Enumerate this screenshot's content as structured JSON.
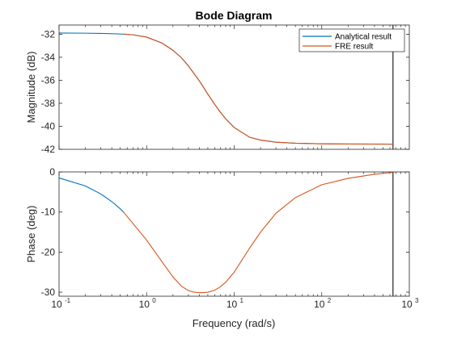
{
  "chart_data": {
    "type": "line",
    "title": "Bode Diagram",
    "xlabel": "Frequency (rad/s)",
    "xscale": "log",
    "xlim": [
      0.1,
      1000
    ],
    "xticks": [
      {
        "base": "10",
        "exp": "-1"
      },
      {
        "base": "10",
        "exp": "0"
      },
      {
        "base": "10",
        "exp": "1"
      },
      {
        "base": "10",
        "exp": "2"
      },
      {
        "base": "10",
        "exp": "3"
      }
    ],
    "vertical_marker_x": 650,
    "legend": {
      "placement": "top-right"
    },
    "panels": [
      {
        "name": "magnitude",
        "ylabel": "Magnitude (dB)",
        "ylim": [
          -42,
          -31.2
        ],
        "yticks": [
          -42,
          -40,
          -38,
          -36,
          -34,
          -32
        ],
        "series": [
          {
            "name": "Analytical result",
            "color": "#0072BD",
            "x": [
              0.1,
              0.2,
              0.3,
              0.5,
              0.7,
              1,
              1.5,
              2,
              2.5,
              3,
              4,
              5,
              6,
              7,
              8,
              10,
              15,
              20,
              30,
              50,
              100,
              200,
              650
            ],
            "y": [
              -31.9,
              -31.91,
              -31.93,
              -31.98,
              -32.05,
              -32.25,
              -32.77,
              -33.4,
              -34.05,
              -34.75,
              -36.05,
              -37.2,
              -38.1,
              -38.8,
              -39.35,
              -40.1,
              -40.95,
              -41.2,
              -41.38,
              -41.47,
              -41.52,
              -41.54,
              -41.55
            ]
          },
          {
            "name": "FRE result",
            "color": "#D95319",
            "x": [
              0.55,
              0.7,
              1,
              1.5,
              2,
              2.5,
              3,
              4,
              5,
              6,
              7,
              8,
              10,
              15,
              20,
              30,
              50,
              100,
              200,
              650
            ],
            "y": [
              -31.98,
              -32.05,
              -32.25,
              -32.77,
              -33.4,
              -34.05,
              -34.75,
              -36.05,
              -37.2,
              -38.1,
              -38.8,
              -39.35,
              -40.1,
              -40.95,
              -41.2,
              -41.38,
              -41.47,
              -41.52,
              -41.54,
              -41.55
            ]
          }
        ]
      },
      {
        "name": "phase",
        "ylabel": "Phase (deg)",
        "ylim": [
          -31,
          0
        ],
        "yticks": [
          -30,
          -20,
          -10,
          0
        ],
        "series": [
          {
            "name": "Analytical result",
            "color": "#0072BD",
            "x": [
              0.1,
              0.2,
              0.3,
              0.4,
              0.5,
              0.55
            ],
            "y": [
              -1.5,
              -3.5,
              -5.5,
              -7.4,
              -9.2,
              -10.1
            ]
          },
          {
            "name": "FRE result",
            "color": "#D95319",
            "x": [
              0.55,
              0.7,
              1,
              1.5,
              2,
              2.5,
              3,
              3.5,
              4,
              4.5,
              5,
              6,
              7,
              8,
              10,
              15,
              20,
              30,
              50,
              100,
              200,
              400,
              650
            ],
            "y": [
              -10.1,
              -12.9,
              -17,
              -22.4,
              -26.2,
              -28.5,
              -29.6,
              -30.0,
              -30.1,
              -30.1,
              -30.0,
              -29.5,
              -28.6,
              -27.5,
              -25,
              -19,
              -15,
              -10.3,
              -6.4,
              -3.2,
              -1.6,
              -0.6,
              -0.1
            ]
          }
        ]
      }
    ]
  }
}
